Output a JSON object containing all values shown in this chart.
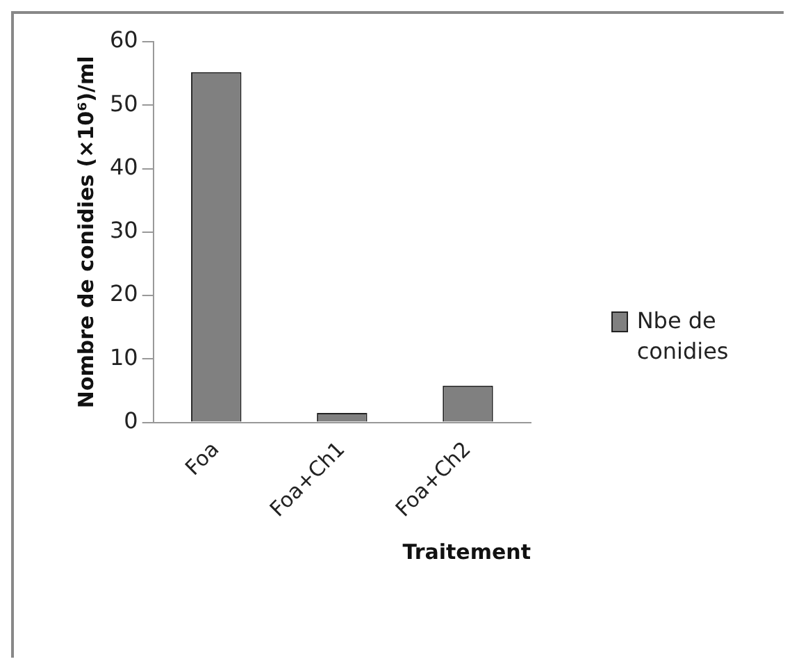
{
  "chart_data": {
    "type": "bar",
    "xlabel": "Traitement",
    "ylabel": "Nombre de conidies (×10⁶)/ml",
    "categories": [
      "Foa",
      "Foa+Ch1",
      "Foa+Ch2"
    ],
    "series": [
      {
        "name": "Nbe de conidies",
        "color": "#808080",
        "values": [
          55.2,
          1.5,
          5.8
        ]
      }
    ],
    "ylim": [
      0,
      60
    ],
    "yticks": [
      0,
      10,
      20,
      30,
      40,
      50,
      60
    ],
    "grid": false,
    "legend": "right"
  }
}
